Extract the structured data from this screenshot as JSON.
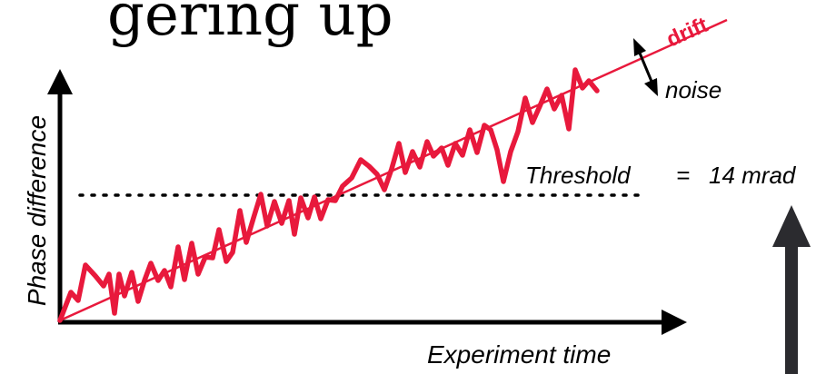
{
  "title_fragment": "gering up",
  "axes": {
    "y_label": "Phase difference",
    "x_label": "Experiment time"
  },
  "threshold": {
    "label": "Threshold",
    "equals": "=",
    "value": "14 mrad"
  },
  "annotations": {
    "drift": "drift",
    "noise": "noise"
  },
  "colors": {
    "signal": "#e8193c",
    "axis": "#000000",
    "side_arrow": "#2b2b2f"
  }
}
